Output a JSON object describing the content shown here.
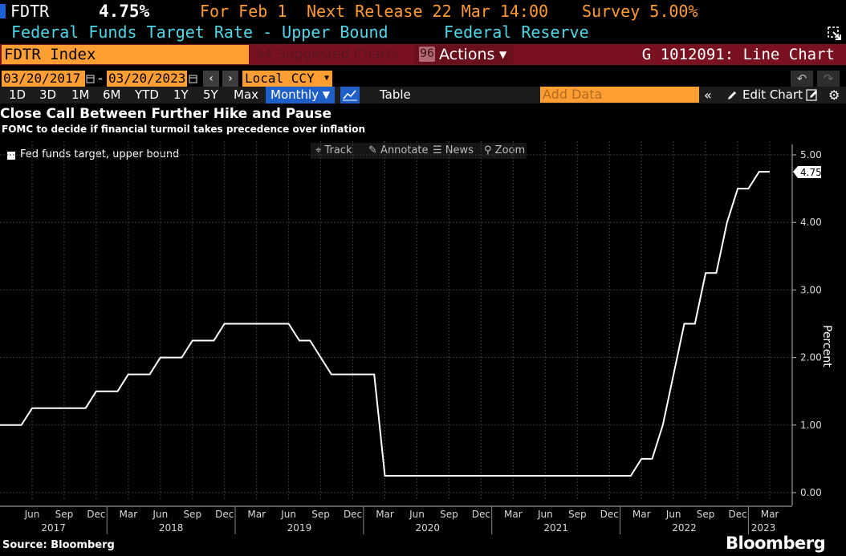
{
  "header": {
    "ticker": "FDTR",
    "value": "4.75%",
    "for_label": "For Feb 1",
    "next_release": "Next Release 22 Mar 14:00",
    "survey": "Survey 5.00%",
    "description": "Federal Funds Target Rate - Upper Bound",
    "source_org": "Federal Reserve"
  },
  "command_bar": {
    "input_value": "FDTR Index",
    "suggested": "94 Suggested Charts",
    "actions_num": "96",
    "actions_label": "Actions",
    "chart_id": "G 1012091: Line Chart"
  },
  "date_row": {
    "start_date": "03/20/2017",
    "separator": "-",
    "end_date": "03/20/2023",
    "currency": "Local CCY"
  },
  "period_row": {
    "periods": [
      "1D",
      "3D",
      "1M",
      "6M",
      "YTD",
      "1Y",
      "5Y",
      "Max"
    ],
    "frequency": "Monthly",
    "table_label": "Table",
    "add_data_placeholder": "Add Data",
    "edit_chart": "Edit Chart"
  },
  "chart_tools": [
    "Track",
    "Annotate",
    "News",
    "Zoom"
  ],
  "footer": {
    "source": "Source: Bloomberg",
    "brand": "Bloomberg"
  },
  "colors": {
    "accent_orange": "#ff9f33",
    "command_bar": "#7a1120",
    "header_cyan": "#4fd6e8",
    "highlight_blue": "#1f5fc8",
    "series_line": "#ffffff"
  },
  "icons": {
    "calendar": "calendar-icon",
    "nav_prev": "chevron-left-icon",
    "nav_next": "chevron-right-icon",
    "line_chart": "line-chart-icon",
    "undo": "undo-icon",
    "redo": "redo-icon",
    "pencil": "pencil-icon",
    "settings": "gear-icon",
    "collapse": "double-chevron-left-icon",
    "popout": "popout-icon"
  },
  "chart_data": {
    "type": "line",
    "title": "Close Call Between Further Hike and Pause",
    "subtitle": "FOMC to decide if financial turmoil takes precedence over inflation",
    "ylabel": "Percent",
    "ylim": [
      0,
      5
    ],
    "yticks": [
      "0.00",
      "1.00",
      "2.00",
      "3.00",
      "4.00",
      "5.00"
    ],
    "last_value_label": "4.75",
    "legend": "top-left",
    "grid": true,
    "x_month_ticks": [
      "Jun",
      "Sep",
      "Dec",
      "Mar",
      "Jun",
      "Sep",
      "Dec",
      "Mar",
      "Jun",
      "Sep",
      "Dec",
      "Mar",
      "Jun",
      "Sep",
      "Dec",
      "Mar",
      "Jun",
      "Sep",
      "Dec",
      "Mar",
      "Jun",
      "Sep",
      "Dec",
      "Mar"
    ],
    "x_year_ticks": [
      "2017",
      "2018",
      "2019",
      "2020",
      "2021",
      "2022",
      "2023"
    ],
    "series": [
      {
        "name": "Fed funds target, upper bound",
        "x": [
          "2017-03",
          "2017-04",
          "2017-05",
          "2017-06",
          "2017-07",
          "2017-08",
          "2017-09",
          "2017-10",
          "2017-11",
          "2017-12",
          "2018-01",
          "2018-02",
          "2018-03",
          "2018-04",
          "2018-05",
          "2018-06",
          "2018-07",
          "2018-08",
          "2018-09",
          "2018-10",
          "2018-11",
          "2018-12",
          "2019-01",
          "2019-02",
          "2019-03",
          "2019-04",
          "2019-05",
          "2019-06",
          "2019-07",
          "2019-08",
          "2019-09",
          "2019-10",
          "2019-11",
          "2019-12",
          "2020-01",
          "2020-02",
          "2020-03",
          "2020-04",
          "2020-05",
          "2020-06",
          "2020-07",
          "2020-08",
          "2020-09",
          "2020-10",
          "2020-11",
          "2020-12",
          "2021-01",
          "2021-02",
          "2021-03",
          "2021-04",
          "2021-05",
          "2021-06",
          "2021-07",
          "2021-08",
          "2021-09",
          "2021-10",
          "2021-11",
          "2021-12",
          "2022-01",
          "2022-02",
          "2022-03",
          "2022-04",
          "2022-05",
          "2022-06",
          "2022-07",
          "2022-08",
          "2022-09",
          "2022-10",
          "2022-11",
          "2022-12",
          "2023-01",
          "2023-02",
          "2023-03"
        ],
        "values": [
          1.0,
          1.0,
          1.0,
          1.25,
          1.25,
          1.25,
          1.25,
          1.25,
          1.25,
          1.5,
          1.5,
          1.5,
          1.75,
          1.75,
          1.75,
          2.0,
          2.0,
          2.0,
          2.25,
          2.25,
          2.25,
          2.5,
          2.5,
          2.5,
          2.5,
          2.5,
          2.5,
          2.5,
          2.25,
          2.25,
          2.0,
          1.75,
          1.75,
          1.75,
          1.75,
          1.75,
          0.25,
          0.25,
          0.25,
          0.25,
          0.25,
          0.25,
          0.25,
          0.25,
          0.25,
          0.25,
          0.25,
          0.25,
          0.25,
          0.25,
          0.25,
          0.25,
          0.25,
          0.25,
          0.25,
          0.25,
          0.25,
          0.25,
          0.25,
          0.25,
          0.5,
          0.5,
          1.0,
          1.75,
          2.5,
          2.5,
          3.25,
          3.25,
          4.0,
          4.5,
          4.5,
          4.75,
          4.75
        ]
      }
    ]
  }
}
